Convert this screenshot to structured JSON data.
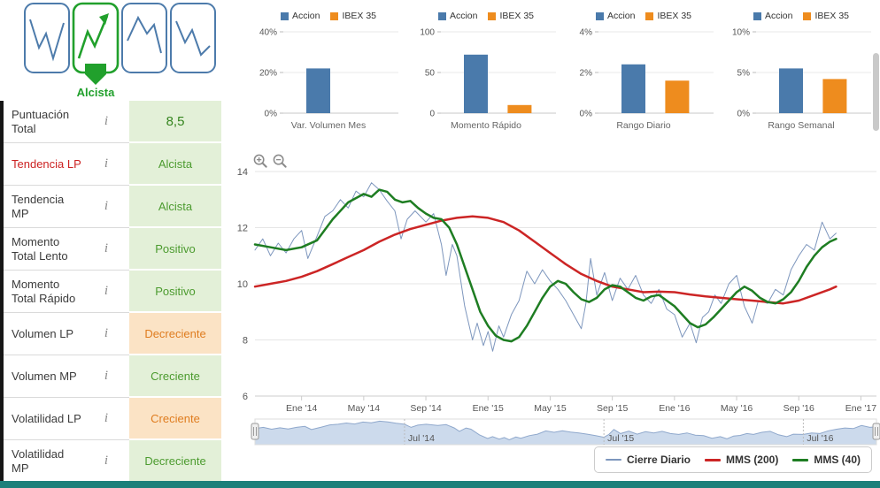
{
  "pattern_selector": {
    "detected_label": "Alcista"
  },
  "indicators": {
    "info_icon": "i",
    "rows": [
      {
        "label": "Puntuación Total",
        "value": "8,5",
        "tone": "green",
        "emphasis": "score"
      },
      {
        "label": "Tendencia LP",
        "value": "Alcista",
        "tone": "green",
        "label_style": "red"
      },
      {
        "label": "Tendencia MP",
        "value": "Alcista",
        "tone": "green"
      },
      {
        "label": "Momento Total Lento",
        "value": "Positivo",
        "tone": "green"
      },
      {
        "label": "Momento Total Rápido",
        "value": "Positivo",
        "tone": "green"
      },
      {
        "label": "Volumen LP",
        "value": "Decreciente",
        "tone": "orange"
      },
      {
        "label": "Volumen MP",
        "value": "Creciente",
        "tone": "green"
      },
      {
        "label": "Volatilidad LP",
        "value": "Creciente",
        "tone": "orange"
      },
      {
        "label": "Volatilidad MP",
        "value": "Decreciente",
        "tone": "green"
      }
    ]
  },
  "colors": {
    "accion": "#4a7aab",
    "ibex": "#ee8c1e",
    "green_text": "#4c9b2f",
    "green_bg": "#e3f0d8",
    "orange_text": "#df7c1f",
    "orange_bg": "#fbe3c5",
    "red_label": "#cc2222",
    "close_line": "#7d96bd",
    "mms200": "#cc2525",
    "mms40": "#1e7d22",
    "navigator_fill": "#ccdaec",
    "navigator_line": "#8fa8cc",
    "accent_teal": "#1b807a",
    "pattern_green": "#21a02c",
    "pattern_blue": "#4d7bab"
  },
  "chart_data": [
    {
      "type": "bar",
      "title": "Var. Volumen Mes",
      "legend": [
        "Accion",
        "IBEX 35"
      ],
      "categories": [
        "Accion",
        "IBEX 35"
      ],
      "values": [
        22,
        0
      ],
      "ylim": [
        0,
        40
      ],
      "yticks": [
        "0%",
        "20%",
        "40%"
      ]
    },
    {
      "type": "bar",
      "title": "Momento Rápido",
      "legend": [
        "Accion",
        "IBEX 35"
      ],
      "categories": [
        "Accion",
        "IBEX 35"
      ],
      "values": [
        72,
        10
      ],
      "ylim": [
        0,
        100
      ],
      "yticks": [
        "0",
        "50",
        "100"
      ]
    },
    {
      "type": "bar",
      "title": "Rango Diario",
      "legend": [
        "Accion",
        "IBEX 35"
      ],
      "categories": [
        "Accion",
        "IBEX 35"
      ],
      "values": [
        2.4,
        1.6
      ],
      "ylim": [
        0,
        4
      ],
      "yticks": [
        "0%",
        "2%",
        "4%"
      ]
    },
    {
      "type": "bar",
      "title": "Rango Semanal",
      "legend": [
        "Accion",
        "IBEX 35"
      ],
      "categories": [
        "Accion",
        "IBEX 35"
      ],
      "values": [
        5.5,
        4.2
      ],
      "ylim": [
        0,
        10
      ],
      "yticks": [
        "0%",
        "5%",
        "10%"
      ]
    },
    {
      "type": "line",
      "title": "",
      "ylim": [
        6,
        14
      ],
      "yticks": [
        6,
        8,
        10,
        12,
        14
      ],
      "x_range": [
        0,
        40
      ],
      "x_ticks": [
        {
          "label": "Ene '14",
          "pos": 3
        },
        {
          "label": "May '14",
          "pos": 7
        },
        {
          "label": "Sep '14",
          "pos": 11
        },
        {
          "label": "Ene '15",
          "pos": 15
        },
        {
          "label": "May '15",
          "pos": 19
        },
        {
          "label": "Sep '15",
          "pos": 23
        },
        {
          "label": "Ene '16",
          "pos": 27
        },
        {
          "label": "May '16",
          "pos": 31
        },
        {
          "label": "Sep '16",
          "pos": 35
        },
        {
          "label": "Ene '17",
          "pos": 39
        }
      ],
      "navigator_labels": [
        {
          "label": "Jul '14",
          "pos": 9
        },
        {
          "label": "Jul '15",
          "pos": 21
        },
        {
          "label": "Jul '16",
          "pos": 33
        }
      ],
      "legend_position": "bottom-right",
      "series": [
        {
          "name": "Cierre Diario",
          "color_key": "close_line",
          "width": 1,
          "points": [
            [
              0,
              11.2
            ],
            [
              0.5,
              11.6
            ],
            [
              1,
              11.0
            ],
            [
              1.5,
              11.45
            ],
            [
              2,
              11.1
            ],
            [
              2.5,
              11.6
            ],
            [
              3,
              11.9
            ],
            [
              3.4,
              10.9
            ],
            [
              4,
              11.7
            ],
            [
              4.5,
              12.4
            ],
            [
              5,
              12.6
            ],
            [
              5.5,
              13.0
            ],
            [
              6,
              12.7
            ],
            [
              6.5,
              13.3
            ],
            [
              7,
              13.1
            ],
            [
              7.5,
              13.6
            ],
            [
              8,
              13.35
            ],
            [
              8.5,
              12.95
            ],
            [
              9,
              12.6
            ],
            [
              9.4,
              11.6
            ],
            [
              9.8,
              12.3
            ],
            [
              10.3,
              12.6
            ],
            [
              11,
              12.2
            ],
            [
              11.5,
              12.5
            ],
            [
              12,
              11.4
            ],
            [
              12.3,
              10.3
            ],
            [
              12.7,
              11.4
            ],
            [
              13,
              11.0
            ],
            [
              13.5,
              9.2
            ],
            [
              14,
              8.0
            ],
            [
              14.3,
              8.6
            ],
            [
              14.7,
              7.8
            ],
            [
              15,
              8.3
            ],
            [
              15.3,
              7.6
            ],
            [
              15.7,
              8.5
            ],
            [
              16,
              8.1
            ],
            [
              16.5,
              8.9
            ],
            [
              17,
              9.4
            ],
            [
              17.5,
              10.45
            ],
            [
              18,
              10.0
            ],
            [
              18.5,
              10.5
            ],
            [
              19,
              10.1
            ],
            [
              19.5,
              9.8
            ],
            [
              20,
              9.4
            ],
            [
              20.5,
              8.9
            ],
            [
              21,
              8.4
            ],
            [
              21.3,
              9.3
            ],
            [
              21.6,
              10.9
            ],
            [
              22,
              9.6
            ],
            [
              22.5,
              10.4
            ],
            [
              23,
              9.4
            ],
            [
              23.5,
              10.2
            ],
            [
              24,
              9.8
            ],
            [
              24.5,
              10.3
            ],
            [
              25,
              9.6
            ],
            [
              25.5,
              9.3
            ],
            [
              26,
              9.8
            ],
            [
              26.5,
              9.1
            ],
            [
              27,
              8.9
            ],
            [
              27.5,
              8.1
            ],
            [
              28,
              8.6
            ],
            [
              28.4,
              7.9
            ],
            [
              28.8,
              8.8
            ],
            [
              29.2,
              9.0
            ],
            [
              29.6,
              9.6
            ],
            [
              30,
              9.3
            ],
            [
              30.5,
              10.0
            ],
            [
              31,
              10.3
            ],
            [
              31.5,
              9.2
            ],
            [
              32,
              8.6
            ],
            [
              32.4,
              9.4
            ],
            [
              33,
              9.3
            ],
            [
              33.5,
              9.8
            ],
            [
              34,
              9.6
            ],
            [
              34.5,
              10.5
            ],
            [
              35,
              11.0
            ],
            [
              35.5,
              11.4
            ],
            [
              36,
              11.2
            ],
            [
              36.5,
              12.2
            ],
            [
              37,
              11.6
            ],
            [
              37.4,
              11.8
            ]
          ]
        },
        {
          "name": "MMS (200)",
          "color_key": "mms200",
          "width": 2.5,
          "points": [
            [
              0,
              9.9
            ],
            [
              1,
              10.0
            ],
            [
              2,
              10.1
            ],
            [
              3,
              10.25
            ],
            [
              4,
              10.45
            ],
            [
              5,
              10.7
            ],
            [
              6,
              10.95
            ],
            [
              7,
              11.2
            ],
            [
              8,
              11.5
            ],
            [
              9,
              11.75
            ],
            [
              10,
              11.95
            ],
            [
              11,
              12.1
            ],
            [
              12,
              12.25
            ],
            [
              13,
              12.35
            ],
            [
              14,
              12.4
            ],
            [
              15,
              12.35
            ],
            [
              16,
              12.2
            ],
            [
              17,
              11.9
            ],
            [
              18,
              11.5
            ],
            [
              19,
              11.1
            ],
            [
              20,
              10.7
            ],
            [
              21,
              10.35
            ],
            [
              22,
              10.1
            ],
            [
              23,
              9.9
            ],
            [
              24,
              9.8
            ],
            [
              25,
              9.7
            ],
            [
              26,
              9.72
            ],
            [
              27,
              9.7
            ],
            [
              28,
              9.62
            ],
            [
              29,
              9.55
            ],
            [
              30,
              9.5
            ],
            [
              31,
              9.45
            ],
            [
              32,
              9.4
            ],
            [
              33,
              9.35
            ],
            [
              34,
              9.3
            ],
            [
              35,
              9.4
            ],
            [
              36,
              9.6
            ],
            [
              37,
              9.8
            ],
            [
              37.4,
              9.9
            ]
          ]
        },
        {
          "name": "MMS (40)",
          "color_key": "mms40",
          "width": 2.5,
          "points": [
            [
              0,
              11.4
            ],
            [
              1,
              11.3
            ],
            [
              2,
              11.2
            ],
            [
              3,
              11.3
            ],
            [
              4,
              11.55
            ],
            [
              5,
              12.3
            ],
            [
              6,
              12.9
            ],
            [
              7,
              13.2
            ],
            [
              7.5,
              13.1
            ],
            [
              8,
              13.35
            ],
            [
              8.5,
              13.28
            ],
            [
              9,
              13.0
            ],
            [
              9.5,
              12.9
            ],
            [
              10,
              12.95
            ],
            [
              10.5,
              12.7
            ],
            [
              11,
              12.5
            ],
            [
              11.5,
              12.35
            ],
            [
              12,
              12.3
            ],
            [
              12.5,
              12.0
            ],
            [
              13,
              11.4
            ],
            [
              13.5,
              10.6
            ],
            [
              14,
              9.8
            ],
            [
              14.5,
              9.0
            ],
            [
              15,
              8.5
            ],
            [
              15.5,
              8.15
            ],
            [
              16,
              8.0
            ],
            [
              16.5,
              7.95
            ],
            [
              17,
              8.1
            ],
            [
              17.5,
              8.5
            ],
            [
              18,
              9.0
            ],
            [
              18.5,
              9.5
            ],
            [
              19,
              9.9
            ],
            [
              19.5,
              10.1
            ],
            [
              20,
              10.0
            ],
            [
              20.5,
              9.7
            ],
            [
              21,
              9.45
            ],
            [
              21.5,
              9.35
            ],
            [
              22,
              9.5
            ],
            [
              22.5,
              9.8
            ],
            [
              23,
              9.95
            ],
            [
              23.5,
              9.9
            ],
            [
              24,
              9.7
            ],
            [
              24.5,
              9.5
            ],
            [
              25,
              9.4
            ],
            [
              25.5,
              9.55
            ],
            [
              26,
              9.6
            ],
            [
              26.5,
              9.4
            ],
            [
              27,
              9.2
            ],
            [
              27.5,
              8.9
            ],
            [
              28,
              8.6
            ],
            [
              28.5,
              8.45
            ],
            [
              29,
              8.55
            ],
            [
              29.5,
              8.8
            ],
            [
              30,
              9.1
            ],
            [
              30.5,
              9.4
            ],
            [
              31,
              9.7
            ],
            [
              31.5,
              9.9
            ],
            [
              32,
              9.75
            ],
            [
              32.5,
              9.5
            ],
            [
              33,
              9.35
            ],
            [
              33.5,
              9.3
            ],
            [
              34,
              9.45
            ],
            [
              34.5,
              9.7
            ],
            [
              35,
              10.1
            ],
            [
              35.5,
              10.6
            ],
            [
              36,
              11.0
            ],
            [
              36.5,
              11.3
            ],
            [
              37,
              11.5
            ],
            [
              37.4,
              11.6
            ]
          ]
        }
      ]
    }
  ]
}
